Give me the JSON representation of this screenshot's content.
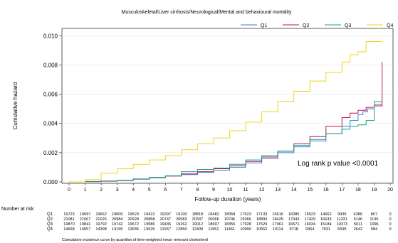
{
  "chart_data": {
    "type": "line",
    "title": "Musculoskeletal/Liver cirrhosis/Neurological/Mental and behavioural mortality",
    "xlabel": "Follow-up duration (years)",
    "ylabel": "Cumulative hazard",
    "xlim": [
      0,
      20
    ],
    "ylim": [
      0,
      0.0105
    ],
    "x_ticks": [
      "0",
      "1",
      "2",
      "3",
      "4",
      "5",
      "6",
      "7",
      "8",
      "9",
      "10",
      "11",
      "12",
      "13",
      "14",
      "15",
      "16",
      "17",
      "18",
      "19",
      "20"
    ],
    "y_ticks": [
      "0.000",
      "0.002",
      "0.004",
      "0.006",
      "0.008",
      "0.010"
    ],
    "legend_position": "top",
    "annotation": "Log rank p value <0.0001",
    "series": [
      {
        "name": "Q1",
        "color": "#3b7fd4",
        "x": [
          0,
          1,
          2,
          3,
          4,
          5,
          6,
          7,
          8,
          9,
          10,
          11,
          12,
          13,
          14,
          15,
          16,
          17,
          17.5,
          18,
          18.3,
          18.6,
          19,
          19.5
        ],
        "y": [
          0,
          2e-05,
          5e-05,
          0.0001,
          0.00018,
          0.00028,
          0.0004,
          0.0005,
          0.00065,
          0.0008,
          0.001,
          0.0013,
          0.0016,
          0.002,
          0.0024,
          0.0028,
          0.0033,
          0.0038,
          0.0042,
          0.0046,
          0.0048,
          0.005,
          0.0053,
          0.0053
        ]
      },
      {
        "name": "Q2",
        "color": "#c0144a",
        "x": [
          0,
          1,
          2,
          3,
          4,
          5,
          6,
          7,
          8,
          9,
          10,
          11,
          12,
          13,
          14,
          15,
          16,
          17,
          17.5,
          18,
          18.5,
          19,
          19.5
        ],
        "y": [
          0,
          2e-05,
          5e-05,
          0.0001,
          0.0002,
          0.0003,
          0.0004,
          0.00055,
          0.0007,
          0.0009,
          0.0011,
          0.0014,
          0.0017,
          0.0021,
          0.0026,
          0.0031,
          0.0038,
          0.0044,
          0.0047,
          0.0049,
          0.0051,
          0.0052,
          0.0082
        ]
      },
      {
        "name": "Q3",
        "color": "#1fa187",
        "x": [
          0,
          1,
          2,
          3,
          4,
          5,
          6,
          7,
          8,
          9,
          10,
          11,
          12,
          13,
          14,
          15,
          16,
          17,
          17.5,
          18,
          18.5,
          19,
          19.5
        ],
        "y": [
          0,
          3e-05,
          7e-05,
          0.00012,
          0.0002,
          0.0003,
          0.00042,
          0.0007,
          0.00085,
          0.00095,
          0.0012,
          0.0015,
          0.0018,
          0.0021,
          0.0025,
          0.0029,
          0.0033,
          0.0036,
          0.0038,
          0.0039,
          0.0042,
          0.0055,
          0.0055
        ]
      },
      {
        "name": "Q4",
        "color": "#f2d21f",
        "x": [
          0,
          1,
          2,
          3,
          4,
          5,
          6,
          7,
          8,
          9,
          10,
          11,
          12,
          13,
          14,
          15,
          16,
          17,
          17.5,
          18,
          18.5,
          19,
          19.5
        ],
        "y": [
          0,
          0.00015,
          0.0006,
          0.0009,
          0.0012,
          0.0015,
          0.0018,
          0.0022,
          0.0026,
          0.003,
          0.0035,
          0.0041,
          0.0048,
          0.0055,
          0.0062,
          0.0069,
          0.0075,
          0.0082,
          0.0087,
          0.0089,
          0.0096,
          0.0096,
          0.0096
        ]
      }
    ],
    "risk_table": {
      "title": "Number at risk",
      "rows": [
        {
          "label": "Q1",
          "values": [
            "19723",
            "19697",
            "19662",
            "19609",
            "19523",
            "19422",
            "19297",
            "19100",
            "18818",
            "18482",
            "18058",
            "17623",
            "17133",
            "16616",
            "16085",
            "15523",
            "14662",
            "9935",
            "4386",
            "807",
            "0"
          ]
        },
        {
          "label": "Q2",
          "values": [
            "21081",
            "21067",
            "21026",
            "20984",
            "20928",
            "20858",
            "20747",
            "20583",
            "20337",
            "20066",
            "19746",
            "19366",
            "18893",
            "18425",
            "17943",
            "17429",
            "16633",
            "11231",
            "5146",
            "1136",
            "0"
          ]
        },
        {
          "label": "Q3",
          "values": [
            "19870",
            "19841",
            "19792",
            "19742",
            "19672",
            "19586",
            "19435",
            "19262",
            "19012",
            "18697",
            "18355",
            "17928",
            "17529",
            "17061",
            "16571",
            "16034",
            "15184",
            "10373",
            "5011",
            "1096",
            "0"
          ]
        },
        {
          "label": "Q4",
          "values": [
            "14668",
            "14557",
            "14398",
            "14199",
            "13936",
            "13626",
            "13267",
            "12850",
            "12409",
            "11951",
            "11461",
            "10990",
            "10562",
            "10114",
            "9718",
            "9364",
            "7931",
            "5595",
            "2642",
            "584",
            "0"
          ]
        }
      ]
    },
    "caption": "Cumulative incidence curve by quantiles of time-weighted mean remnant cholesterol"
  }
}
